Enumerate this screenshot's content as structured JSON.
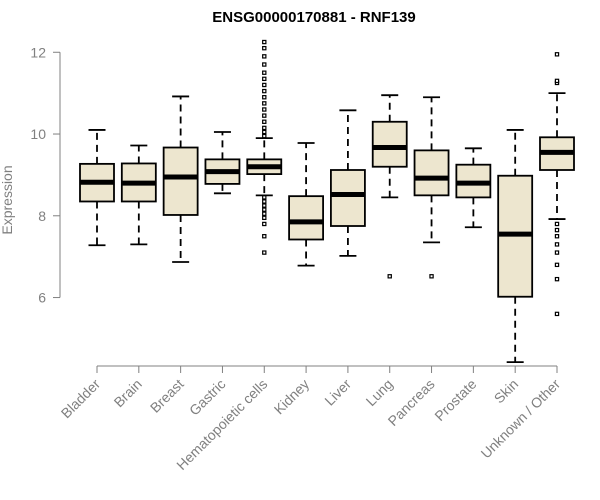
{
  "chart_data": {
    "type": "boxplot",
    "title": "ENSG00000170881 - RNF139",
    "xlabel": "",
    "ylabel": "Expression",
    "ylim": [
      4.35,
      12.3
    ],
    "yticks": [
      6,
      8,
      10,
      12
    ],
    "categories": [
      "Bladder",
      "Brain",
      "Breast",
      "Gastric",
      "Hematopoietic cells",
      "Kidney",
      "Liver",
      "Lung",
      "Pancreas",
      "Prostate",
      "Skin",
      "Unknown / Other"
    ],
    "boxes": [
      {
        "category": "Bladder",
        "whisker_low": 7.28,
        "q1": 8.35,
        "median": 8.82,
        "q3": 9.27,
        "whisker_high": 10.1,
        "outliers": []
      },
      {
        "category": "Brain",
        "whisker_low": 7.3,
        "q1": 8.35,
        "median": 8.8,
        "q3": 9.28,
        "whisker_high": 9.72,
        "outliers": []
      },
      {
        "category": "Breast",
        "whisker_low": 6.87,
        "q1": 8.02,
        "median": 8.95,
        "q3": 9.67,
        "whisker_high": 10.92,
        "outliers": []
      },
      {
        "category": "Gastric",
        "whisker_low": 8.55,
        "q1": 8.78,
        "median": 9.08,
        "q3": 9.38,
        "whisker_high": 10.05,
        "outliers": []
      },
      {
        "category": "Hematopoietic cells",
        "whisker_low": 8.5,
        "q1": 9.02,
        "median": 9.2,
        "q3": 9.38,
        "whisker_high": 9.9,
        "outliers": [
          7.1,
          7.5,
          7.8,
          7.95,
          8.05,
          8.15,
          8.25,
          8.35,
          8.45,
          9.95,
          10.05,
          10.15,
          10.3,
          10.45,
          10.6,
          10.75,
          10.9,
          11.05,
          11.2,
          11.35,
          11.5,
          11.7,
          11.9,
          12.1,
          12.25
        ]
      },
      {
        "category": "Kidney",
        "whisker_low": 6.78,
        "q1": 7.42,
        "median": 7.85,
        "q3": 8.48,
        "whisker_high": 9.78,
        "outliers": []
      },
      {
        "category": "Liver",
        "whisker_low": 7.02,
        "q1": 7.75,
        "median": 8.52,
        "q3": 9.12,
        "whisker_high": 10.58,
        "outliers": []
      },
      {
        "category": "Lung",
        "whisker_low": 8.45,
        "q1": 9.2,
        "median": 9.67,
        "q3": 10.3,
        "whisker_high": 10.95,
        "outliers": [
          6.52
        ]
      },
      {
        "category": "Pancreas",
        "whisker_low": 7.35,
        "q1": 8.5,
        "median": 8.92,
        "q3": 9.6,
        "whisker_high": 10.9,
        "outliers": [
          6.52
        ]
      },
      {
        "category": "Prostate",
        "whisker_low": 7.72,
        "q1": 8.45,
        "median": 8.8,
        "q3": 9.25,
        "whisker_high": 9.65,
        "outliers": []
      },
      {
        "category": "Skin",
        "whisker_low": 4.42,
        "q1": 6.02,
        "median": 7.55,
        "q3": 8.98,
        "whisker_high": 10.1,
        "outliers": []
      },
      {
        "category": "Unknown / Other",
        "whisker_low": 7.92,
        "q1": 9.12,
        "median": 9.55,
        "q3": 9.92,
        "whisker_high": 11.0,
        "outliers": [
          5.6,
          6.45,
          6.8,
          7.1,
          7.3,
          7.5,
          7.65,
          7.8,
          11.25,
          11.3,
          11.95
        ]
      }
    ],
    "box_fill": "#ede6cf",
    "grid": false
  }
}
